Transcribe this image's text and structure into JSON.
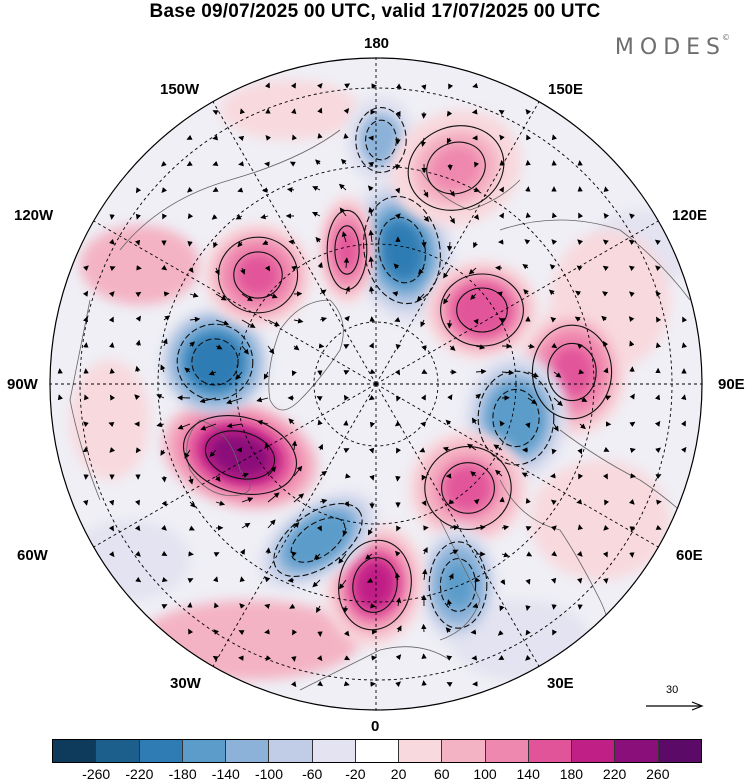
{
  "title": "Base 09/07/2025 00 UTC, valid 17/07/2025 00 UTC",
  "brand": "MODES",
  "brand_mark": "©",
  "longitude_labels": {
    "n180": "180",
    "n150w": "150W",
    "n150e": "150E",
    "n120w": "120W",
    "n120e": "120E",
    "n90w": "90W",
    "n90e": "90E",
    "n60w": "60W",
    "n60e": "60E",
    "n30w": "30W",
    "n30e": "30E",
    "n0": "0"
  },
  "reference_vector": {
    "label": "30",
    "value": 30
  },
  "colorbar": {
    "ticks": [
      "-260",
      "-220",
      "-180",
      "-140",
      "-100",
      "-60",
      "-20",
      "20",
      "60",
      "100",
      "140",
      "180",
      "220",
      "260"
    ],
    "colors": [
      "#0e3a5c",
      "#1d5f8c",
      "#2f7cb4",
      "#5b9cca",
      "#8cb2d9",
      "#c1cde6",
      "#e3e3f1",
      "#ffffff",
      "#f8d9de",
      "#f4b3c4",
      "#ef88ae",
      "#e2549a",
      "#c01f86",
      "#8a0f7a",
      "#5c0a68"
    ]
  },
  "anomaly_centers": [
    {
      "id": "neg-pacific-n",
      "sign": -1,
      "strength": 120
    },
    {
      "id": "neg-siberia-e",
      "sign": -1,
      "strength": 200
    },
    {
      "id": "pos-siberia",
      "sign": 1,
      "strength": 170
    },
    {
      "id": "pos-east-asia",
      "sign": 1,
      "strength": 150
    },
    {
      "id": "neg-central-asia",
      "sign": -1,
      "strength": 170
    },
    {
      "id": "pos-europe-e",
      "sign": 1,
      "strength": 140
    },
    {
      "id": "neg-scandinavia",
      "sign": -1,
      "strength": 150
    },
    {
      "id": "pos-north-sea",
      "sign": 1,
      "strength": 180
    },
    {
      "id": "neg-atlantic",
      "sign": -1,
      "strength": 170
    },
    {
      "id": "pos-greenland",
      "sign": 1,
      "strength": 230
    },
    {
      "id": "neg-canada",
      "sign": -1,
      "strength": 220
    },
    {
      "id": "pos-alaska",
      "sign": 1,
      "strength": 150
    },
    {
      "id": "pos-bering",
      "sign": 1,
      "strength": 160
    },
    {
      "id": "pos-kamchatka",
      "sign": 1,
      "strength": 110
    }
  ]
}
